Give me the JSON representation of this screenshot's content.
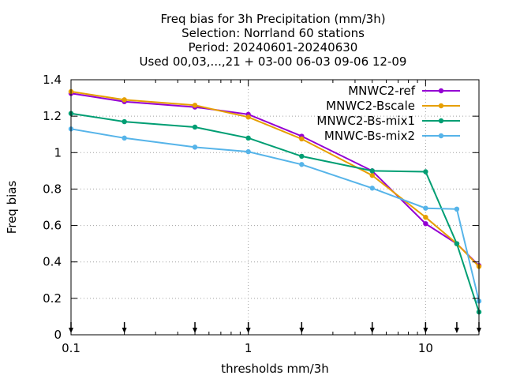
{
  "chart_data": {
    "type": "line",
    "title_lines": [
      "Freq bias  for 3h Precipitation (mm/3h)",
      "Selection: Norrland     60 stations",
      "Period: 20240601-20240630",
      "Used 00,03,...,21 + 03-00 06-03 09-06 12-09"
    ],
    "xlabel": "thresholds mm/3h",
    "ylabel": "Freq bias",
    "x_scale": "log",
    "xlim": [
      0.1,
      20
    ],
    "ylim": [
      0,
      1.4
    ],
    "x_ticks": [
      {
        "value": 0.1,
        "label": "0.1"
      },
      {
        "value": 1,
        "label": "1"
      },
      {
        "value": 10,
        "label": "10"
      }
    ],
    "y_ticks": [
      {
        "value": 0,
        "label": "0"
      },
      {
        "value": 0.2,
        "label": "0.2"
      },
      {
        "value": 0.4,
        "label": "0.4"
      },
      {
        "value": 0.6,
        "label": "0.6"
      },
      {
        "value": 0.8,
        "label": "0.8"
      },
      {
        "value": 1,
        "label": "1"
      },
      {
        "value": 1.2,
        "label": "1.2"
      },
      {
        "value": 1.4,
        "label": "1.4"
      }
    ],
    "grid": true,
    "legend_position": "top-right",
    "threshold_markers": [
      0.1,
      0.2,
      0.5,
      1,
      2,
      5,
      10,
      15,
      20
    ],
    "x": [
      0.1,
      0.2,
      0.5,
      1,
      2,
      5,
      10,
      15,
      20
    ],
    "series": [
      {
        "name": "MNWC2-ref",
        "color": "#9400d3",
        "values": [
          1.325,
          1.28,
          1.25,
          1.21,
          1.09,
          0.9,
          0.61,
          0.5,
          0.38
        ]
      },
      {
        "name": "MNWC2-Bscale",
        "color": "#e69f00",
        "values": [
          1.335,
          1.29,
          1.26,
          1.195,
          1.075,
          0.875,
          0.645,
          0.5,
          0.375
        ]
      },
      {
        "name": "MNWC2-Bs-mix1",
        "color": "#009e73",
        "values": [
          1.215,
          1.17,
          1.14,
          1.08,
          0.98,
          0.9,
          0.895,
          0.5,
          0.125
        ]
      },
      {
        "name": "MNWC-Bs-mix2",
        "color": "#56b4e9",
        "values": [
          1.13,
          1.08,
          1.03,
          1.005,
          0.935,
          0.805,
          0.695,
          0.69,
          0.185
        ]
      }
    ]
  }
}
